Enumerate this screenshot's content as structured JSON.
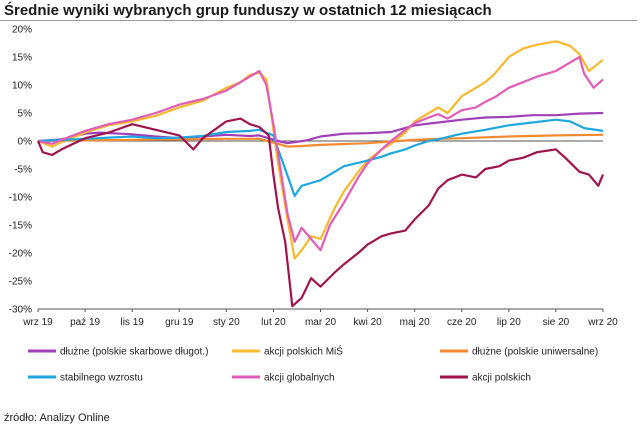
{
  "chart_data": {
    "type": "line",
    "title": "Średnie wyniki wybranych grup funduszy w ostatnich 12 miesiącach",
    "source": "źródło: Analizy Online",
    "ylim": [
      -30,
      20
    ],
    "y_ticks": [
      20,
      15,
      10,
      5,
      0,
      -5,
      -10,
      -15,
      -20,
      -25,
      -30
    ],
    "y_tick_labels": [
      "20%",
      "15%",
      "10%",
      "5%",
      "0%",
      "-5%",
      "-10%",
      "-15%",
      "-20%",
      "-25%",
      "-30%"
    ],
    "x_ticks": [
      "wrz 19",
      "paź 19",
      "lis 19",
      "gru 19",
      "sty 20",
      "lut 20",
      "mar 20",
      "kwi 20",
      "maj 20",
      "cze 20",
      "lip 20",
      "sie 20",
      "wrz 20"
    ],
    "grid": false,
    "legend_position": "bottom",
    "series": [
      {
        "name": "dłużne (polskie skarbowe długot.)",
        "color": "#a040b8",
        "values": [
          [
            0,
            0
          ],
          [
            0.5,
            0.3
          ],
          [
            1,
            1.3
          ],
          [
            1.3,
            1.5
          ],
          [
            2,
            1.2
          ],
          [
            2.5,
            0.8
          ],
          [
            3,
            0.5
          ],
          [
            3.5,
            0.8
          ],
          [
            4,
            1.1
          ],
          [
            4.5,
            0.9
          ],
          [
            4.7,
            1.0
          ],
          [
            5.1,
            0
          ],
          [
            5.3,
            -0.4
          ],
          [
            5.7,
            0.1
          ],
          [
            6,
            0.8
          ],
          [
            6.5,
            1.3
          ],
          [
            7,
            1.4
          ],
          [
            7.5,
            1.6
          ],
          [
            8,
            2.8
          ],
          [
            8.5,
            3.3
          ],
          [
            9,
            3.8
          ],
          [
            9.5,
            4.2
          ],
          [
            10,
            4.3
          ],
          [
            10.5,
            4.6
          ],
          [
            11,
            4.6
          ],
          [
            11.5,
            4.9
          ],
          [
            12,
            5.0
          ]
        ]
      },
      {
        "name": "akcji polskich MiŚ",
        "color": "#f7b92e",
        "values": [
          [
            0,
            0
          ],
          [
            0.3,
            -1.0
          ],
          [
            0.5,
            -0.2
          ],
          [
            1,
            1.5
          ],
          [
            1.5,
            2.8
          ],
          [
            2,
            3.5
          ],
          [
            2.5,
            4.5
          ],
          [
            3,
            6.0
          ],
          [
            3.5,
            7.2
          ],
          [
            4,
            9.5
          ],
          [
            4.3,
            10.5
          ],
          [
            4.5,
            11.8
          ],
          [
            4.7,
            12.2
          ],
          [
            4.85,
            11.0
          ],
          [
            5,
            2.0
          ],
          [
            5.1,
            -4.0
          ],
          [
            5.2,
            -9.0
          ],
          [
            5.3,
            -14.0
          ],
          [
            5.45,
            -21.0
          ],
          [
            5.6,
            -19.5
          ],
          [
            5.8,
            -17.0
          ],
          [
            6,
            -17.5
          ],
          [
            6.3,
            -12.0
          ],
          [
            6.5,
            -9.0
          ],
          [
            6.8,
            -5.5
          ],
          [
            7,
            -3.5
          ],
          [
            7.3,
            -1.5
          ],
          [
            7.5,
            -0.5
          ],
          [
            7.8,
            1.5
          ],
          [
            8,
            3.5
          ],
          [
            8.3,
            5.0
          ],
          [
            8.5,
            6.0
          ],
          [
            8.7,
            5.0
          ],
          [
            9,
            8.0
          ],
          [
            9.3,
            9.5
          ],
          [
            9.5,
            10.5
          ],
          [
            9.7,
            12.0
          ],
          [
            10,
            15.0
          ],
          [
            10.3,
            16.5
          ],
          [
            10.6,
            17.2
          ],
          [
            11,
            17.8
          ],
          [
            11.3,
            17.0
          ],
          [
            11.5,
            15.5
          ],
          [
            11.7,
            12.5
          ],
          [
            12,
            14.5
          ]
        ]
      },
      {
        "name": "dłużne (polskie uniwersalne)",
        "color": "#f28a30",
        "values": [
          [
            0,
            0
          ],
          [
            1,
            0.1
          ],
          [
            2,
            0.2
          ],
          [
            3,
            0.3
          ],
          [
            4,
            0.4
          ],
          [
            4.7,
            0.4
          ],
          [
            5.1,
            -0.5
          ],
          [
            5.3,
            -1.0
          ],
          [
            5.6,
            -0.9
          ],
          [
            6,
            -0.7
          ],
          [
            7,
            -0.4
          ],
          [
            8,
            0.2
          ],
          [
            8.5,
            0.4
          ],
          [
            9,
            0.5
          ],
          [
            10,
            0.8
          ],
          [
            11,
            1.0
          ],
          [
            12,
            1.1
          ]
        ]
      },
      {
        "name": "stabilnego wzrostu",
        "color": "#1ea6df",
        "values": [
          [
            0,
            0
          ],
          [
            0.5,
            0.2
          ],
          [
            1,
            0.4
          ],
          [
            1.5,
            0.6
          ],
          [
            2,
            0.8
          ],
          [
            2.5,
            0.5
          ],
          [
            3,
            0.6
          ],
          [
            3.5,
            0.9
          ],
          [
            4,
            1.6
          ],
          [
            4.5,
            1.8
          ],
          [
            4.7,
            2.0
          ],
          [
            5,
            1.0
          ],
          [
            5.1,
            -1.5
          ],
          [
            5.25,
            -5.0
          ],
          [
            5.45,
            -9.8
          ],
          [
            5.6,
            -8.0
          ],
          [
            5.8,
            -7.5
          ],
          [
            6,
            -7.0
          ],
          [
            6.3,
            -5.5
          ],
          [
            6.5,
            -4.5
          ],
          [
            7,
            -3.5
          ],
          [
            7.3,
            -2.8
          ],
          [
            7.5,
            -2.2
          ],
          [
            7.8,
            -1.5
          ],
          [
            8,
            -0.8
          ],
          [
            8.3,
            0.0
          ],
          [
            8.5,
            0.3
          ],
          [
            8.7,
            0.7
          ],
          [
            9,
            1.3
          ],
          [
            9.5,
            2.0
          ],
          [
            10,
            2.8
          ],
          [
            10.5,
            3.3
          ],
          [
            11,
            3.8
          ],
          [
            11.3,
            3.5
          ],
          [
            11.6,
            2.3
          ],
          [
            12,
            1.8
          ]
        ]
      },
      {
        "name": "akcji globalnych",
        "color": "#e05cb8",
        "values": [
          [
            0,
            0
          ],
          [
            0.3,
            -0.5
          ],
          [
            0.5,
            0.2
          ],
          [
            1,
            1.8
          ],
          [
            1.5,
            3.0
          ],
          [
            2,
            3.8
          ],
          [
            2.5,
            5.0
          ],
          [
            3,
            6.5
          ],
          [
            3.5,
            7.5
          ],
          [
            4,
            9.0
          ],
          [
            4.3,
            10.5
          ],
          [
            4.5,
            11.5
          ],
          [
            4.7,
            12.5
          ],
          [
            4.85,
            10.0
          ],
          [
            5,
            3.0
          ],
          [
            5.15,
            -5.0
          ],
          [
            5.3,
            -13.0
          ],
          [
            5.45,
            -18.0
          ],
          [
            5.6,
            -15.5
          ],
          [
            5.8,
            -17.5
          ],
          [
            6,
            -19.5
          ],
          [
            6.2,
            -15.0
          ],
          [
            6.5,
            -11.0
          ],
          [
            6.8,
            -6.5
          ],
          [
            7,
            -4.0
          ],
          [
            7.3,
            -1.5
          ],
          [
            7.5,
            0.0
          ],
          [
            7.8,
            2.0
          ],
          [
            8,
            3.2
          ],
          [
            8.3,
            4.2
          ],
          [
            8.5,
            4.8
          ],
          [
            8.7,
            4.0
          ],
          [
            9,
            5.5
          ],
          [
            9.3,
            6.0
          ],
          [
            9.5,
            7.0
          ],
          [
            9.7,
            7.8
          ],
          [
            10,
            9.5
          ],
          [
            10.3,
            10.5
          ],
          [
            10.6,
            11.5
          ],
          [
            11,
            12.5
          ],
          [
            11.3,
            14.0
          ],
          [
            11.5,
            15.0
          ],
          [
            11.6,
            12.0
          ],
          [
            11.8,
            9.5
          ],
          [
            12,
            11.0
          ]
        ]
      },
      {
        "name": "akcji polskich",
        "color": "#a0144e",
        "values": [
          [
            0,
            0
          ],
          [
            0.1,
            -2.0
          ],
          [
            0.3,
            -2.5
          ],
          [
            0.5,
            -1.5
          ],
          [
            1,
            0.5
          ],
          [
            1.5,
            1.5
          ],
          [
            2,
            3.0
          ],
          [
            2.5,
            2.0
          ],
          [
            3,
            1.0
          ],
          [
            3.3,
            -1.5
          ],
          [
            3.5,
            0.5
          ],
          [
            4,
            3.5
          ],
          [
            4.3,
            4.0
          ],
          [
            4.5,
            3.0
          ],
          [
            4.7,
            2.5
          ],
          [
            4.9,
            1.0
          ],
          [
            5,
            -6.0
          ],
          [
            5.1,
            -12.0
          ],
          [
            5.25,
            -18.0
          ],
          [
            5.4,
            -29.5
          ],
          [
            5.6,
            -28.0
          ],
          [
            5.8,
            -24.5
          ],
          [
            6,
            -26.0
          ],
          [
            6.3,
            -23.5
          ],
          [
            6.5,
            -22.0
          ],
          [
            6.8,
            -20.0
          ],
          [
            7,
            -18.5
          ],
          [
            7.3,
            -17.0
          ],
          [
            7.5,
            -16.5
          ],
          [
            7.8,
            -16.0
          ],
          [
            8,
            -14.0
          ],
          [
            8.3,
            -11.5
          ],
          [
            8.5,
            -8.5
          ],
          [
            8.7,
            -7.0
          ],
          [
            9,
            -6.0
          ],
          [
            9.3,
            -6.5
          ],
          [
            9.5,
            -5.0
          ],
          [
            9.8,
            -4.5
          ],
          [
            10,
            -3.5
          ],
          [
            10.3,
            -3.0
          ],
          [
            10.6,
            -2.0
          ],
          [
            11,
            -1.5
          ],
          [
            11.2,
            -3.0
          ],
          [
            11.5,
            -5.5
          ],
          [
            11.7,
            -6.0
          ],
          [
            11.9,
            -8.0
          ],
          [
            12,
            -6.0
          ]
        ]
      }
    ]
  }
}
